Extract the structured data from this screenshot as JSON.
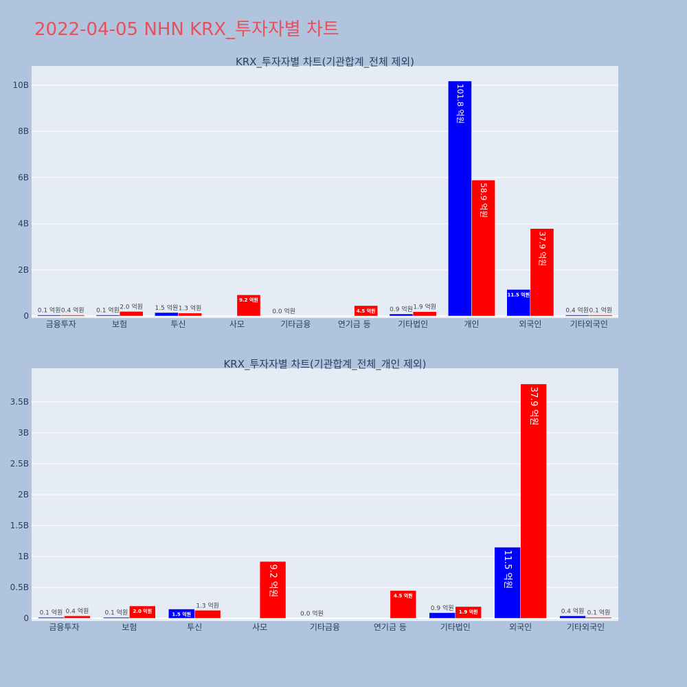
{
  "page_title": "2022-04-05 NHN KRX_투자자별 차트",
  "colors": {
    "buy": "#0000ff",
    "sell": "#ff0000",
    "plot_bg": "#e5ecf6",
    "page_bg": "#b0c4de",
    "title": "#e8505b"
  },
  "chart_data": [
    {
      "type": "bar",
      "title": "KRX_투자자별 차트(기관합계_전체 제외)",
      "categories": [
        "금융투자",
        "보험",
        "투신",
        "사모",
        "기타금융",
        "연기금 등",
        "기타법인",
        "개인",
        "외국인",
        "기타외국인"
      ],
      "series": [
        {
          "color": "#0000ff",
          "values": [
            0.01,
            0.01,
            0.15,
            null,
            0.0,
            null,
            0.09,
            10.18,
            1.15,
            0.04
          ],
          "labels": [
            "0.1 억원",
            "0.1 억원",
            "1.5 억원",
            "",
            "0.0 억원",
            "",
            "0.9 억원",
            "101.8 억원",
            "11.5 억원",
            "0.4 억원"
          ]
        },
        {
          "color": "#ff0000",
          "values": [
            0.04,
            0.2,
            0.13,
            0.92,
            null,
            0.45,
            0.19,
            5.89,
            3.79,
            0.01
          ],
          "labels": [
            "0.4 억원",
            "2.0 억원",
            "1.3 억원",
            "9.2 억원",
            "",
            "4.5 억원",
            "1.9 억원",
            "58.9 억원",
            "37.9 억원",
            "0.1 억원"
          ]
        }
      ],
      "y_unit": "B",
      "ylim": [
        0,
        10.9
      ],
      "yticks": [
        0,
        2,
        4,
        6,
        8,
        10
      ],
      "ytick_labels": [
        "0",
        "2B",
        "4B",
        "6B",
        "8B",
        "10B"
      ],
      "grid": true
    },
    {
      "type": "bar",
      "title": "KRX_투자자별 차트(기관합계_전체_개인 제외)",
      "categories": [
        "금융투자",
        "보험",
        "투신",
        "사모",
        "기타금융",
        "연기금 등",
        "기타법인",
        "외국인",
        "기타외국인"
      ],
      "series": [
        {
          "color": "#0000ff",
          "values": [
            0.01,
            0.01,
            0.15,
            null,
            0.0,
            null,
            0.09,
            1.15,
            0.04
          ],
          "labels": [
            "0.1 억원",
            "0.1 억원",
            "1.5 억원",
            "",
            "0.0 억원",
            "",
            "0.9 억원",
            "11.5 억원",
            "0.4 억원"
          ]
        },
        {
          "color": "#ff0000",
          "values": [
            0.04,
            0.2,
            0.13,
            0.92,
            null,
            0.45,
            0.19,
            3.79,
            0.01
          ],
          "labels": [
            "0.4 억원",
            "2.0 억원",
            "1.3 억원",
            "9.2 억원",
            "",
            "4.5 억원",
            "1.9 억원",
            "37.9 억원",
            "0.1 억원"
          ]
        }
      ],
      "y_unit": "B",
      "ylim": [
        0,
        4.0
      ],
      "yticks": [
        0,
        0.5,
        1,
        1.5,
        2,
        2.5,
        3,
        3.5
      ],
      "ytick_labels": [
        "0",
        "0.5B",
        "1B",
        "1.5B",
        "2B",
        "2.5B",
        "3B",
        "3.5B"
      ],
      "grid": true
    }
  ]
}
